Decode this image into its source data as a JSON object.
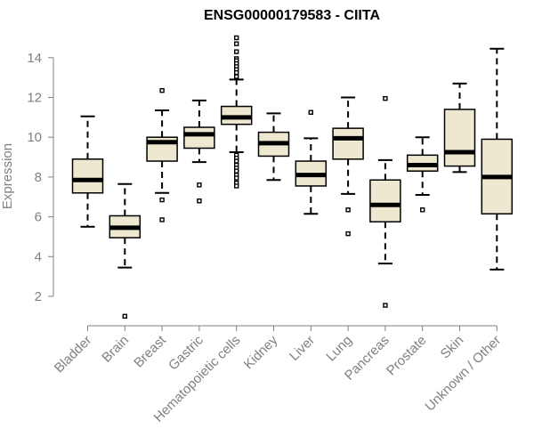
{
  "chart_data": {
    "type": "boxplot",
    "title": "ENSG00000179583 - CIITA",
    "xlabel": "",
    "ylabel": "Expression",
    "ylim": [
      1,
      15
    ],
    "yticks": [
      2,
      4,
      6,
      8,
      10,
      12,
      14
    ],
    "box_color": "#EEE8D0",
    "categories": [
      "Bladder",
      "Brain",
      "Breast",
      "Gastric",
      "Hematopoietic cells",
      "Kidney",
      "Liver",
      "Lung",
      "Pancreas",
      "Prostate",
      "Skin",
      "Unknown / Other"
    ],
    "boxes": [
      {
        "category": "Bladder",
        "q1": 7.2,
        "median": 7.85,
        "q3": 8.9,
        "whisker_low": 5.5,
        "whisker_high": 11.05,
        "outliers": []
      },
      {
        "category": "Brain",
        "q1": 4.95,
        "median": 5.45,
        "q3": 6.05,
        "whisker_low": 3.45,
        "whisker_high": 7.65,
        "outliers": [
          1.0
        ]
      },
      {
        "category": "Breast",
        "q1": 8.8,
        "median": 9.75,
        "q3": 10.0,
        "whisker_low": 7.2,
        "whisker_high": 11.35,
        "outliers": [
          12.35,
          6.85,
          5.85
        ]
      },
      {
        "category": "Gastric",
        "q1": 9.45,
        "median": 10.15,
        "q3": 10.5,
        "whisker_low": 8.75,
        "whisker_high": 11.85,
        "outliers": [
          7.6,
          6.8
        ]
      },
      {
        "category": "Hematopoietic cells",
        "q1": 10.65,
        "median": 11.0,
        "q3": 11.55,
        "whisker_low": 9.25,
        "whisker_high": 12.9,
        "outliers": [
          15.0,
          14.7,
          14.3,
          13.95,
          13.85,
          13.7,
          13.55,
          13.4,
          13.25,
          13.05,
          9.1,
          8.95,
          8.8,
          8.6,
          8.45,
          8.3,
          8.1,
          7.95,
          7.7,
          7.55
        ]
      },
      {
        "category": "Kidney",
        "q1": 9.05,
        "median": 9.7,
        "q3": 10.25,
        "whisker_low": 7.85,
        "whisker_high": 11.2,
        "outliers": []
      },
      {
        "category": "Liver",
        "q1": 7.55,
        "median": 8.1,
        "q3": 8.8,
        "whisker_low": 6.15,
        "whisker_high": 9.95,
        "outliers": [
          11.25
        ]
      },
      {
        "category": "Lung",
        "q1": 8.9,
        "median": 9.95,
        "q3": 10.45,
        "whisker_low": 7.15,
        "whisker_high": 12.0,
        "outliers": [
          6.35,
          5.15
        ]
      },
      {
        "category": "Pancreas",
        "q1": 5.75,
        "median": 6.6,
        "q3": 7.85,
        "whisker_low": 3.65,
        "whisker_high": 8.85,
        "outliers": [
          11.95,
          1.55
        ]
      },
      {
        "category": "Prostate",
        "q1": 8.3,
        "median": 8.6,
        "q3": 9.1,
        "whisker_low": 7.1,
        "whisker_high": 10.0,
        "outliers": [
          6.35
        ]
      },
      {
        "category": "Skin",
        "q1": 8.55,
        "median": 9.25,
        "q3": 11.4,
        "whisker_low": 8.25,
        "whisker_high": 12.7,
        "outliers": []
      },
      {
        "category": "Unknown / Other",
        "q1": 6.15,
        "median": 8.0,
        "q3": 9.9,
        "whisker_low": 3.35,
        "whisker_high": 14.45,
        "outliers": []
      }
    ]
  }
}
